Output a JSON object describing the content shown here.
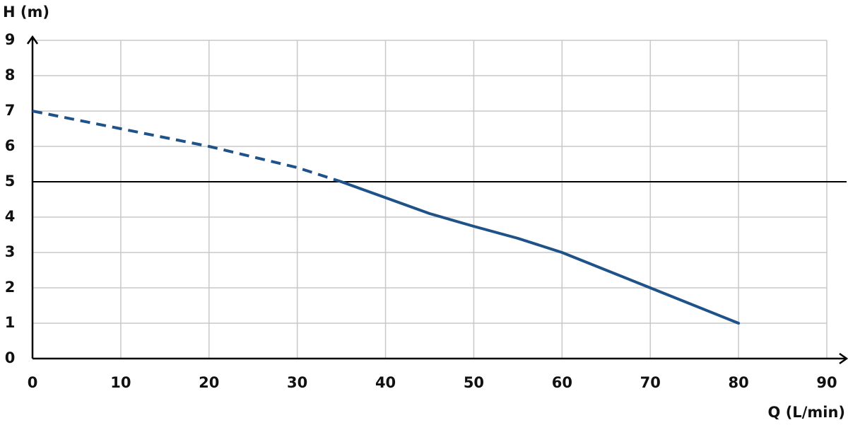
{
  "chart_data": {
    "type": "line",
    "y_label": "H (m)",
    "x_label": "Q (L/min)",
    "xlim": [
      0,
      90
    ],
    "xticks": [
      0,
      10,
      20,
      30,
      40,
      50,
      60,
      70,
      80,
      90
    ],
    "ylim": [
      0,
      9
    ],
    "yticks": [
      0,
      1,
      2,
      3,
      4,
      5,
      6,
      7,
      8,
      9
    ],
    "grid": true,
    "hline": 5,
    "series": [
      {
        "color": "#1f5289",
        "dashed": true,
        "x": [
          0,
          10,
          20,
          30,
          35
        ],
        "values": [
          7,
          6.5,
          6,
          5.4,
          5
        ]
      },
      {
        "color": "#1f5289",
        "dashed": false,
        "x": [
          35,
          40,
          45,
          50,
          55,
          60,
          70,
          80
        ],
        "values": [
          5,
          4.55,
          4.1,
          3.74,
          3.4,
          3,
          2,
          1
        ]
      }
    ]
  }
}
